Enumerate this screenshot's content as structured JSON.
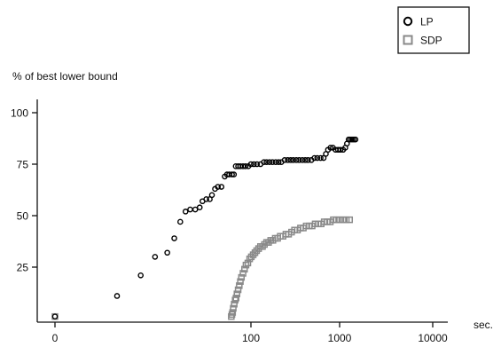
{
  "chart_data": {
    "type": "scatter",
    "title": "",
    "ylabel": "% of best lower bound",
    "xlabel": "sec.",
    "x_scale": "log",
    "x_range": [
      1,
      10000
    ],
    "y_range": [
      0,
      110
    ],
    "x_ticks": [
      {
        "value": 1,
        "label": "0"
      },
      {
        "value": 100,
        "label": "100"
      },
      {
        "value": 1000,
        "label": "1000"
      },
      {
        "value": 10000,
        "label": "10000"
      }
    ],
    "y_ticks": [
      25,
      50,
      75,
      100
    ],
    "grid": false,
    "legend_position": "top-right",
    "series": [
      {
        "name": "LP",
        "marker": "circle",
        "color": "#000000",
        "points": [
          [
            1,
            1
          ],
          [
            4.3,
            11
          ],
          [
            7.5,
            21
          ],
          [
            10.5,
            30
          ],
          [
            14.0,
            32
          ],
          [
            16.5,
            39
          ],
          [
            19.0,
            47
          ],
          [
            21.5,
            52
          ],
          [
            24.0,
            53
          ],
          [
            27.0,
            53
          ],
          [
            30.0,
            54
          ],
          [
            32.0,
            57
          ],
          [
            35.0,
            58
          ],
          [
            38.0,
            58
          ],
          [
            40.0,
            60
          ],
          [
            43.0,
            63
          ],
          [
            46.0,
            64
          ],
          [
            50.0,
            64
          ],
          [
            54.0,
            69
          ],
          [
            57.0,
            70
          ],
          [
            60.0,
            70
          ],
          [
            64.0,
            70
          ],
          [
            67.0,
            70
          ],
          [
            70.0,
            74
          ],
          [
            74.0,
            74
          ],
          [
            78.0,
            74
          ],
          [
            83.0,
            74
          ],
          [
            88.0,
            74
          ],
          [
            94.0,
            74
          ],
          [
            100.0,
            75
          ],
          [
            108.0,
            75
          ],
          [
            117.0,
            75
          ],
          [
            128.0,
            75
          ],
          [
            140.0,
            76
          ],
          [
            150.0,
            76
          ],
          [
            162.0,
            76
          ],
          [
            175.0,
            76
          ],
          [
            190.0,
            76
          ],
          [
            205.0,
            76
          ],
          [
            220.0,
            76
          ],
          [
            240.0,
            77
          ],
          [
            260.0,
            77
          ],
          [
            280.0,
            77
          ],
          [
            300.0,
            77
          ],
          [
            325.0,
            77
          ],
          [
            350.0,
            77
          ],
          [
            380.0,
            77
          ],
          [
            410.0,
            77
          ],
          [
            440.0,
            77
          ],
          [
            480.0,
            77
          ],
          [
            520.0,
            78
          ],
          [
            560.0,
            78
          ],
          [
            610.0,
            78
          ],
          [
            660.0,
            78
          ],
          [
            700.0,
            80
          ],
          [
            740.0,
            82
          ],
          [
            790.0,
            83
          ],
          [
            840.0,
            83
          ],
          [
            900.0,
            82
          ],
          [
            960.0,
            82
          ],
          [
            1020.0,
            82
          ],
          [
            1090.0,
            82
          ],
          [
            1150.0,
            83
          ],
          [
            1200.0,
            85
          ],
          [
            1250.0,
            87
          ],
          [
            1300.0,
            87
          ],
          [
            1360.0,
            87
          ],
          [
            1420.0,
            87
          ],
          [
            1480.0,
            87
          ]
        ]
      },
      {
        "name": "SDP",
        "marker": "square",
        "color": "#8a8a8a",
        "points": [
          [
            1,
            1
          ],
          [
            63.0,
            1
          ],
          [
            64.0,
            2
          ],
          [
            65.0,
            3
          ],
          [
            66.0,
            5
          ],
          [
            67.5,
            7
          ],
          [
            69.0,
            9
          ],
          [
            70.5,
            10
          ],
          [
            72.0,
            12
          ],
          [
            74.0,
            14
          ],
          [
            76.0,
            16
          ],
          [
            78.0,
            18
          ],
          [
            80.0,
            20
          ],
          [
            83.0,
            22
          ],
          [
            86.0,
            24
          ],
          [
            89.0,
            26
          ],
          [
            93.0,
            27
          ],
          [
            97.0,
            29
          ],
          [
            101.0,
            30
          ],
          [
            106.0,
            31
          ],
          [
            111.0,
            32
          ],
          [
            116.0,
            33
          ],
          [
            122.0,
            34
          ],
          [
            128.0,
            35
          ],
          [
            135.0,
            35
          ],
          [
            142.0,
            36
          ],
          [
            150.0,
            37
          ],
          [
            158.0,
            37
          ],
          [
            167.0,
            38
          ],
          [
            177.0,
            38
          ],
          [
            188.0,
            39
          ],
          [
            200.0,
            39
          ],
          [
            214.0,
            40
          ],
          [
            230.0,
            40
          ],
          [
            248.0,
            41
          ],
          [
            266.0,
            41
          ],
          [
            287.0,
            42
          ],
          [
            310.0,
            43
          ],
          [
            335.0,
            43
          ],
          [
            362.0,
            44
          ],
          [
            390.0,
            44
          ],
          [
            420.0,
            45
          ],
          [
            455.0,
            45
          ],
          [
            490.0,
            45
          ],
          [
            530.0,
            46
          ],
          [
            575.0,
            46
          ],
          [
            620.0,
            46
          ],
          [
            670.0,
            47
          ],
          [
            725.0,
            47
          ],
          [
            785.0,
            47
          ],
          [
            850.0,
            48
          ],
          [
            920.0,
            48
          ],
          [
            1000.0,
            48
          ],
          [
            1090.0,
            48
          ],
          [
            1180.0,
            48
          ],
          [
            1280.0,
            48
          ]
        ]
      }
    ]
  }
}
